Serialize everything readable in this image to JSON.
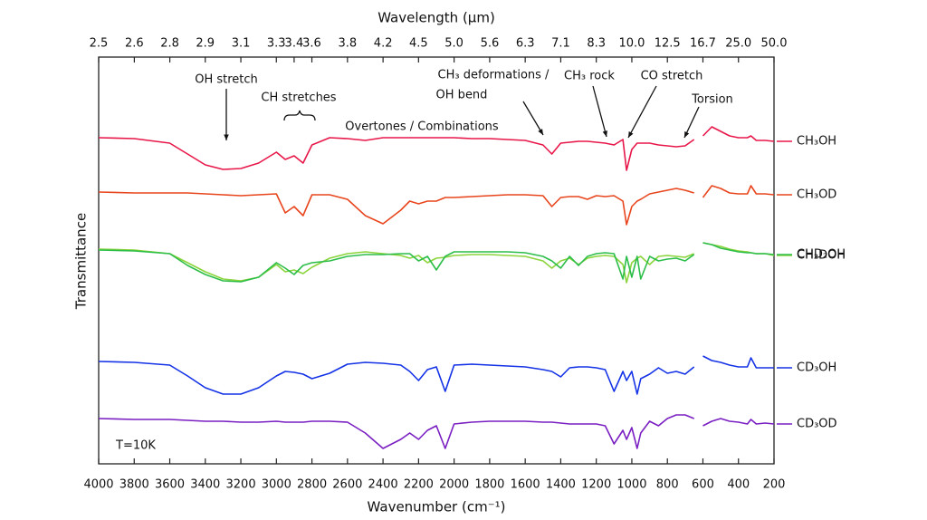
{
  "chart_data": {
    "type": "line",
    "title": "Wavelength (µm)",
    "x_label": "Wavenumber (cm⁻¹)",
    "y_label": "Transmittance",
    "xlim": [
      4000,
      200
    ],
    "xticks": [
      4000,
      3800,
      3600,
      3400,
      3200,
      3000,
      2800,
      2600,
      2400,
      2200,
      2000,
      1800,
      1600,
      1400,
      1200,
      1000,
      800,
      600,
      400,
      200
    ],
    "x2lim": [
      2.5,
      50
    ],
    "x2_scale": "reciprocal",
    "x2ticks": [
      2.5,
      {
        "value": 2.632,
        "label": "2.6"
      },
      {
        "value": 2.778,
        "label": "2.8"
      },
      {
        "value": 2.941,
        "label": "2.9"
      },
      {
        "value": 3.125,
        "label": "3.1"
      },
      {
        "value": 3.333,
        "label": "3.3"
      },
      {
        "value": 3.448,
        "label": "3.4"
      },
      {
        "value": 3.571,
        "label": "3.6"
      },
      {
        "value": 3.846,
        "label": "3.8"
      },
      {
        "value": 4.167,
        "label": "4.2"
      },
      {
        "value": 4.545,
        "label": "4.5"
      },
      {
        "value": 5,
        "label": "5.0"
      },
      {
        "value": 5.556,
        "label": "5.6"
      },
      {
        "value": 6.25,
        "label": "6.3"
      },
      {
        "value": 7.143,
        "label": "7.1"
      },
      {
        "value": 8.333,
        "label": "8.3"
      },
      {
        "value": 10,
        "label": "10.0"
      },
      12.5,
      {
        "value": 16.667,
        "label": "16.7"
      },
      {
        "value": 25,
        "label": "25.0"
      },
      {
        "value": 50,
        "label": "50.0"
      }
    ],
    "ylim": [
      0,
      449
    ],
    "x": [
      4000,
      3800,
      3600,
      3500,
      3400,
      3300,
      3200,
      3100,
      3000,
      2950,
      2900,
      2850,
      2800,
      2700,
      2600,
      2500,
      2400,
      2300,
      2250,
      2200,
      2150,
      2100,
      2050,
      2000,
      1900,
      1800,
      1700,
      1600,
      1500,
      1450,
      1400,
      1350,
      1300,
      1250,
      1200,
      1150,
      1100,
      1050,
      1030,
      1000,
      970,
      950,
      900,
      850,
      800,
      750,
      700,
      650,
      620,
      600,
      550,
      500,
      450,
      400,
      350,
      330,
      300,
      250,
      200
    ],
    "series": [
      {
        "name": "CH₃OH",
        "color": "#e8174a",
        "values": [
          360,
          359,
          354,
          342,
          330,
          325,
          326,
          332,
          344,
          336,
          340,
          332,
          352,
          360,
          359,
          357,
          360,
          360,
          360,
          360,
          360,
          360,
          360,
          360,
          359,
          359,
          358,
          357,
          352,
          342,
          354,
          355,
          356,
          356,
          355,
          354,
          352,
          358,
          324,
          347,
          354,
          354,
          354,
          352,
          351,
          350,
          351,
          358,
          null,
          362,
          372,
          367,
          362,
          360,
          360,
          362,
          357,
          357,
          356
        ]
      },
      {
        "name": "CH₃OD",
        "color": "#e8461e",
        "values": [
          300,
          299,
          299,
          299,
          298,
          297,
          296,
          297,
          298,
          277,
          284,
          274,
          297,
          297,
          292,
          274,
          265,
          280,
          290,
          287,
          290,
          290,
          294,
          294,
          295,
          296,
          297,
          297,
          296,
          284,
          294,
          295,
          295,
          292,
          296,
          295,
          296,
          290,
          264,
          284,
          290,
          292,
          298,
          300,
          302,
          304,
          302,
          299,
          null,
          294,
          307,
          304,
          299,
          298,
          298,
          307,
          298,
          298,
          297
        ]
      },
      {
        "name": "CH₂DOH",
        "color": "#8bd43c",
        "values": [
          237,
          236,
          232,
          222,
          212,
          204,
          202,
          206,
          220,
          212,
          214,
          210,
          217,
          227,
          232,
          234,
          232,
          230,
          227,
          230,
          222,
          227,
          228,
          230,
          231,
          231,
          230,
          229,
          224,
          216,
          224,
          227,
          220,
          227,
          229,
          230,
          229,
          220,
          200,
          222,
          227,
          229,
          220,
          229,
          230,
          229,
          228,
          232,
          null,
          244,
          242,
          240,
          237,
          235,
          234,
          233,
          232,
          232,
          230
        ]
      },
      {
        "name": "CHD₂OH",
        "color": "#2dbe4a",
        "values": [
          236,
          235,
          232,
          219,
          209,
          202,
          201,
          206,
          222,
          216,
          209,
          219,
          222,
          224,
          229,
          231,
          231,
          232,
          232,
          224,
          229,
          214,
          229,
          234,
          234,
          234,
          234,
          233,
          229,
          224,
          216,
          229,
          219,
          229,
          232,
          233,
          232,
          204,
          229,
          206,
          229,
          204,
          229,
          224,
          226,
          227,
          224,
          231,
          null,
          244,
          242,
          238,
          236,
          234,
          233,
          233,
          232,
          232,
          231
        ]
      },
      {
        "name": "CD₃OH",
        "color": "#1432e6",
        "values": [
          113,
          112,
          109,
          97,
          84,
          77,
          77,
          84,
          97,
          102,
          101,
          99,
          94,
          100,
          110,
          112,
          111,
          109,
          102,
          92,
          104,
          107,
          80,
          109,
          110,
          109,
          108,
          107,
          104,
          102,
          96,
          106,
          107,
          107,
          106,
          104,
          80,
          102,
          92,
          102,
          77,
          94,
          99,
          106,
          100,
          102,
          99,
          107,
          null,
          119,
          114,
          112,
          109,
          107,
          107,
          117,
          106,
          106,
          106
        ]
      },
      {
        "name": "CD₃OD",
        "color": "#7a1fc2",
        "values": [
          50,
          49,
          49,
          48,
          47,
          47,
          46,
          46,
          47,
          46,
          46,
          46,
          47,
          47,
          46,
          34,
          17,
          27,
          34,
          27,
          37,
          42,
          17,
          44,
          46,
          47,
          47,
          47,
          46,
          46,
          45,
          44,
          44,
          44,
          44,
          42,
          22,
          37,
          27,
          40,
          17,
          34,
          47,
          42,
          50,
          54,
          54,
          50,
          null,
          42,
          47,
          50,
          47,
          46,
          44,
          49,
          44,
          45,
          44
        ]
      }
    ],
    "annotations": [
      "OH stretch",
      "CH stretches",
      "Overtones / Combinations",
      "CH₃ deformations /",
      "OH bend",
      "CH₃ rock",
      "CO stretch",
      "Torsion",
      "T=10K"
    ]
  }
}
